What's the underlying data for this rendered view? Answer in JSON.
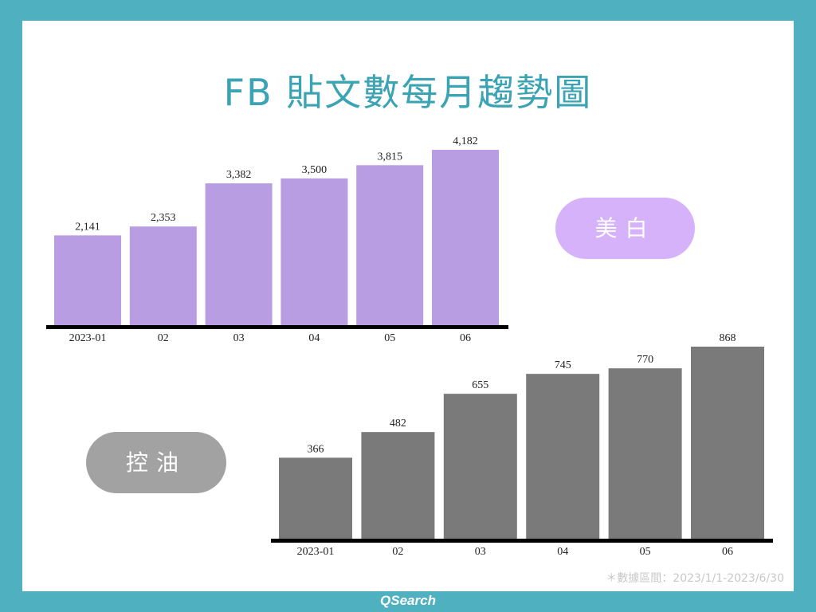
{
  "title": "FB 貼文數每月趨勢圖",
  "labels": {
    "whitening": "美白",
    "oil_control": "控油"
  },
  "footnote": "＊數據區間：2023/1/1-2023/6/30",
  "brand": "QSearch",
  "colors": {
    "frame": "#4fb0c0",
    "title": "#3aa3b4",
    "whitening_bar": "#b99de3",
    "whitening_pill": "#d6b2fa",
    "oil_bar": "#7a7a7a",
    "oil_pill": "#a2a2a2"
  },
  "chart_data": [
    {
      "type": "bar",
      "name": "美白",
      "categories": [
        "2023-01",
        "02",
        "03",
        "04",
        "05",
        "06"
      ],
      "values": [
        2141,
        2353,
        3382,
        3500,
        3815,
        4182
      ],
      "value_labels": [
        "2,141",
        "2,353",
        "3,382",
        "3,500",
        "3,815",
        "4,182"
      ],
      "ylim": [
        0,
        4182
      ]
    },
    {
      "type": "bar",
      "name": "控油",
      "categories": [
        "2023-01",
        "02",
        "03",
        "04",
        "05",
        "06"
      ],
      "values": [
        366,
        482,
        655,
        745,
        770,
        868
      ],
      "value_labels": [
        "366",
        "482",
        "655",
        "745",
        "770",
        "868"
      ],
      "ylim": [
        0,
        868
      ]
    }
  ]
}
